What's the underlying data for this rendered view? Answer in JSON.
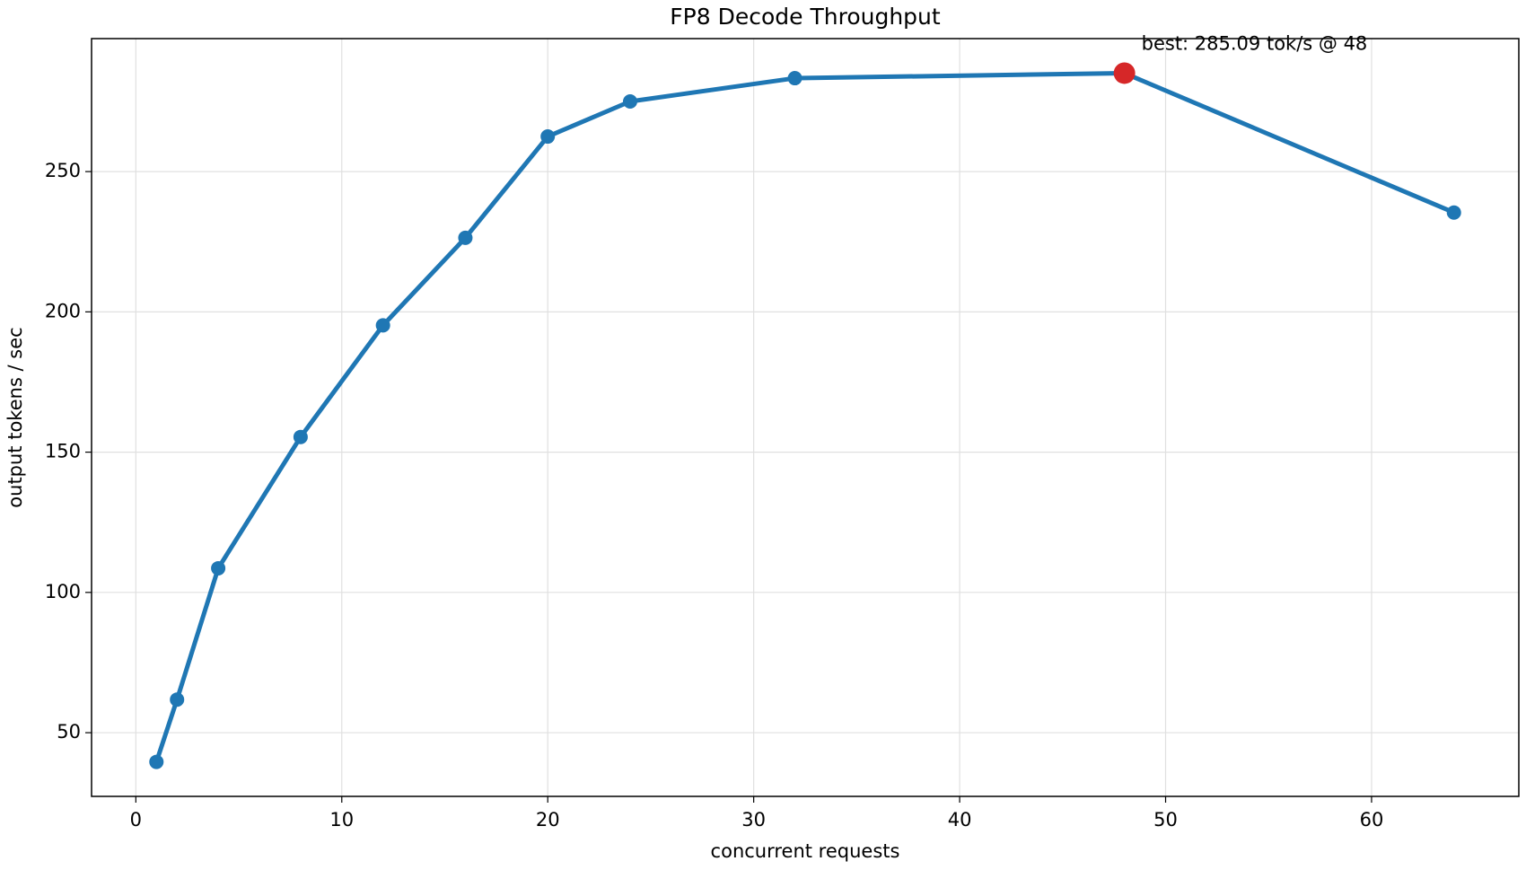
{
  "chart_data": {
    "type": "line",
    "title": "FP8 Decode Throughput",
    "x_label": "concurrent requests",
    "y_label": "output tokens / sec",
    "x": [
      1,
      2,
      4,
      8,
      12,
      16,
      20,
      24,
      32,
      48,
      64
    ],
    "series": [
      {
        "name": "throughput",
        "color": "#1f77b4",
        "values": [
          39.6,
          61.8,
          108.6,
          155.4,
          195.2,
          226.4,
          262.5,
          275.0,
          283.3,
          285.09,
          235.4
        ]
      }
    ],
    "annotation": {
      "text": "best: 285.09 tok/s @ 48",
      "x": 48,
      "y": 285.09,
      "color": "#d62728"
    },
    "xlim": [
      -2.15,
      67.15
    ],
    "ylim": [
      27.3,
      297.4
    ],
    "xticks": [
      0,
      10,
      20,
      30,
      40,
      50,
      60
    ],
    "yticks": [
      50,
      100,
      150,
      200,
      250
    ],
    "grid": true
  }
}
